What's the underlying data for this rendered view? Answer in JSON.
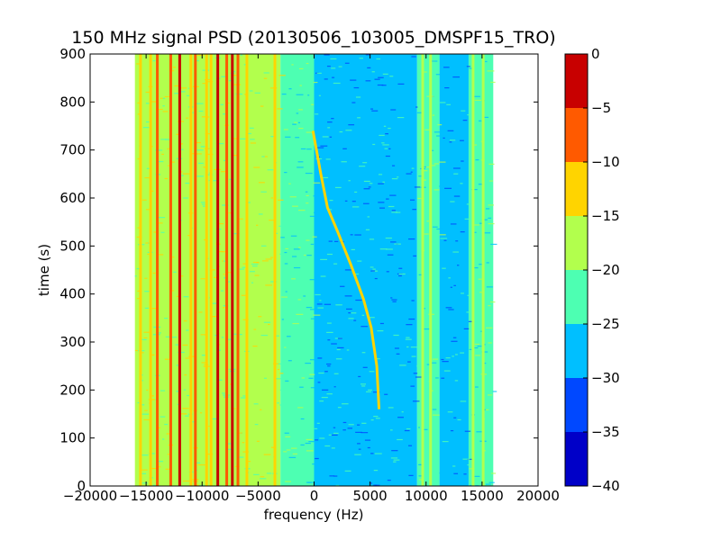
{
  "chart_data": {
    "type": "heatmap",
    "title": "150 MHz signal PSD (20130506_103005_DMSPF15_TRO)",
    "xlabel": "frequency (Hz)",
    "ylabel": "time (s)",
    "xlim": [
      -20000,
      20000
    ],
    "ylim": [
      0,
      900
    ],
    "data_xrange": [
      -16000,
      16000
    ],
    "x_ticks": [
      -20000,
      -15000,
      -10000,
      -5000,
      0,
      5000,
      10000,
      15000,
      20000
    ],
    "x_tick_labels": [
      "−20000",
      "−15000",
      "−10000",
      "−5000",
      "0",
      "5000",
      "10000",
      "15000",
      "20000"
    ],
    "y_ticks": [
      0,
      100,
      200,
      300,
      400,
      500,
      600,
      700,
      800,
      900
    ],
    "y_tick_labels": [
      "0",
      "100",
      "200",
      "300",
      "400",
      "500",
      "600",
      "700",
      "800",
      "900"
    ],
    "colorbar": {
      "range": [
        -40,
        0
      ],
      "levels": [
        -40,
        -35,
        -30,
        -25,
        -20,
        -15,
        -10,
        -5,
        0
      ],
      "tick_labels": [
        "−40",
        "−35",
        "−30",
        "−25",
        "−20",
        "−15",
        "−10",
        "−5",
        "0"
      ],
      "colors": [
        "#0000c8",
        "#0048ff",
        "#00bfff",
        "#4dffb2",
        "#b2ff4d",
        "#ffd400",
        "#ff5a00",
        "#c80000"
      ]
    },
    "background_bands": [
      {
        "x0": -16000,
        "x1": -3000,
        "level": -20
      },
      {
        "x0": -3000,
        "x1": 0,
        "level": -25
      },
      {
        "x0": 0,
        "x1": 9200,
        "level": -30
      },
      {
        "x0": 9200,
        "x1": 11200,
        "level": -25
      },
      {
        "x0": 11200,
        "x1": 13800,
        "level": -30
      },
      {
        "x0": 13800,
        "x1": 16000,
        "level": -25
      }
    ],
    "vertical_lines": [
      {
        "x": -15500,
        "level": -15
      },
      {
        "x": -14600,
        "level": -15
      },
      {
        "x": -14000,
        "level": -10
      },
      {
        "x": -12800,
        "level": -10
      },
      {
        "x": -12000,
        "level": -5
      },
      {
        "x": -11000,
        "level": -15
      },
      {
        "x": -10600,
        "level": -10
      },
      {
        "x": -9600,
        "level": -15
      },
      {
        "x": -9200,
        "level": -15
      },
      {
        "x": -8600,
        "level": -5
      },
      {
        "x": -7800,
        "level": -10
      },
      {
        "x": -7300,
        "level": -5
      },
      {
        "x": -6800,
        "level": -10
      },
      {
        "x": -6000,
        "level": -15
      },
      {
        "x": -3500,
        "level": -15
      },
      {
        "x": 9700,
        "level": -20
      },
      {
        "x": 10400,
        "level": -20
      },
      {
        "x": 14200,
        "level": -20
      },
      {
        "x": 15100,
        "level": -20
      }
    ],
    "doppler_trace": {
      "level": -15,
      "points": [
        {
          "x": 5800,
          "y": 160
        },
        {
          "x": 5600,
          "y": 250
        },
        {
          "x": 5100,
          "y": 330
        },
        {
          "x": 4400,
          "y": 390
        },
        {
          "x": 3300,
          "y": 460
        },
        {
          "x": 2100,
          "y": 530
        },
        {
          "x": 1200,
          "y": 580
        },
        {
          "x": 600,
          "y": 650
        },
        {
          "x": -100,
          "y": 740
        }
      ]
    }
  }
}
